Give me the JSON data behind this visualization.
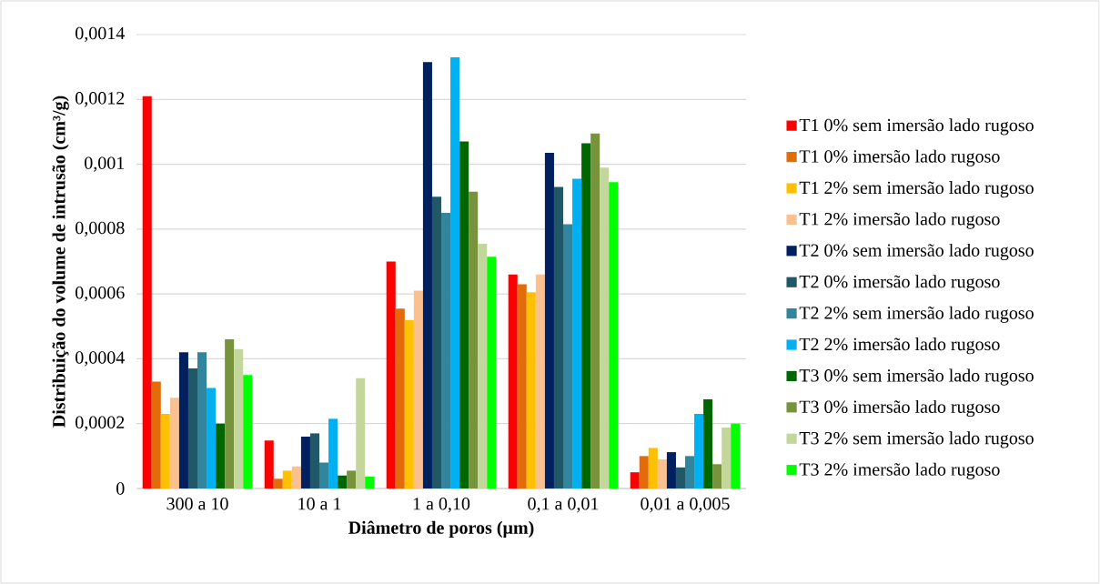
{
  "chart_data": {
    "type": "bar",
    "xlabel": "Diâmetro de poros (µm)",
    "ylabel": "Distribuição do volume de intrusão (cm³/g)",
    "categories": [
      "300 a 10",
      "10 a 1",
      "1 a 0,10",
      "0,1 a 0,01",
      "0,01 a 0,005"
    ],
    "series": [
      {
        "name": "T1 0% sem imersão lado rugoso",
        "color": "#ff0000",
        "values": [
          0.00121,
          0.000148,
          0.0007,
          0.00066,
          5e-05
        ]
      },
      {
        "name": "T1 0% imersão lado rugoso",
        "color": "#e36c09",
        "values": [
          0.00033,
          3e-05,
          0.000555,
          0.00063,
          0.0001
        ]
      },
      {
        "name": "T1 2% sem imersão lado rugoso",
        "color": "#ffc000",
        "values": [
          0.00023,
          5.5e-05,
          0.00052,
          0.000605,
          0.000125
        ]
      },
      {
        "name": "T1 2% imersão lado rugoso",
        "color": "#fac090",
        "values": [
          0.00028,
          6.8e-05,
          0.00061,
          0.00066,
          9e-05
        ]
      },
      {
        "name": "T2 0% sem imersão lado rugoso",
        "color": "#002060",
        "values": [
          0.00042,
          0.00016,
          0.001315,
          0.001035,
          0.000112
        ]
      },
      {
        "name": "T2 0% imersão lado rugoso",
        "color": "#215868",
        "values": [
          0.00037,
          0.00017,
          0.0009,
          0.00093,
          6.5e-05
        ]
      },
      {
        "name": "T2 2% sem imersão lado rugoso",
        "color": "#31859c",
        "values": [
          0.00042,
          8e-05,
          0.00085,
          0.000815,
          0.0001
        ]
      },
      {
        "name": "T2 2% imersão lado rugoso",
        "color": "#00b0f0",
        "values": [
          0.00031,
          0.000215,
          0.00133,
          0.000955,
          0.00023
        ]
      },
      {
        "name": "T3 0% sem imersão lado rugoso",
        "color": "#006600",
        "values": [
          0.0002,
          4e-05,
          0.00107,
          0.001065,
          0.000275
        ]
      },
      {
        "name": "T3 0% imersão lado rugoso",
        "color": "#77933c",
        "values": [
          0.00046,
          5.5e-05,
          0.000915,
          0.001095,
          7.5e-05
        ]
      },
      {
        "name": "T3 2% sem imersão lado rugoso",
        "color": "#c3d69b",
        "values": [
          0.00043,
          0.00034,
          0.000755,
          0.00099,
          0.000188
        ]
      },
      {
        "name": "T3 2% imersão lado rugoso",
        "color": "#00ff00",
        "values": [
          0.00035,
          3.7e-05,
          0.000715,
          0.000945,
          0.0002
        ]
      }
    ],
    "ylim": [
      0,
      0.0014
    ],
    "yticks": [
      0,
      {
        "value": 0.0002,
        "label": "0,0002"
      },
      {
        "value": 0.0004,
        "label": "0,0004"
      },
      {
        "value": 0.0006,
        "label": "0,0006"
      },
      {
        "value": 0.0008,
        "label": "0,0008"
      },
      {
        "value": 0.001,
        "label": "0,001"
      },
      {
        "value": 0.0012,
        "label": "0,0012"
      },
      {
        "value": 0.0014,
        "label": "0,0014"
      }
    ],
    "grid": "y",
    "legend": "right"
  }
}
